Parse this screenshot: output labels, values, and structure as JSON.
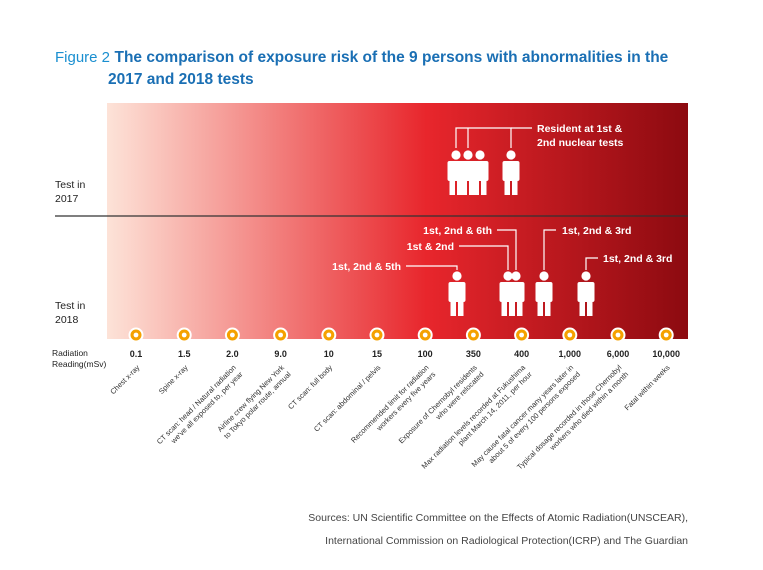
{
  "figure": {
    "label": "Figure 2",
    "title_line1": "The comparison of exposure risk of the 9 persons with abnormalities in the",
    "title_line2": "2017 and 2018 tests"
  },
  "chart_data": {
    "type": "timeline",
    "row_labels": [
      {
        "line1": "Test in",
        "line2": "2017"
      },
      {
        "line1": "Test in",
        "line2": "2018"
      }
    ],
    "axis_label": {
      "line1": "Radiation",
      "line2": "Reading(mSv)"
    },
    "readings": [
      "0.1",
      "1.5",
      "2.0",
      "9.0",
      "10",
      "15",
      "100",
      "350",
      "400",
      "1,000",
      "6,000",
      "10,000"
    ],
    "descriptions": [
      [
        "Chest x-ray"
      ],
      [
        "Spine x-ray"
      ],
      [
        "CT scan: head / Natural radiation",
        "we've all exposed to, per year"
      ],
      [
        "Airline crew flying New York",
        "to Tokyo polar route, annual"
      ],
      [
        "CT scan: full body"
      ],
      [
        "CT scan: abdominal / pelvis"
      ],
      [
        "Recommended limit for radiation",
        "workers every five years"
      ],
      [
        "Exposure of Chernobyl residents",
        "who were relocated"
      ],
      [
        "Max radiation levels recorded at Fukushima",
        "plant March 14, 2011, per hour"
      ],
      [
        "May cause fatal cancer many years later in",
        "about 5 of every 100 persons exposed"
      ],
      [
        "Typical dosage recorded in those Chernobyl",
        "workers who died within a month"
      ],
      [
        "Fatal within weeks"
      ]
    ],
    "persons_2017": [
      {
        "reading_index": 7,
        "label": "Resident at 1st & 2nd nuclear tests",
        "label_line1": "Resident at 1st &",
        "label_line2": "2nd nuclear tests",
        "count": 3,
        "detail": "three figures near 350"
      },
      {
        "reading_index": 8,
        "label": "Resident at 1st & 2nd nuclear tests",
        "count": 1
      }
    ],
    "persons_2018": [
      {
        "reading_index": 7,
        "label": "1st, 2nd & 5th"
      },
      {
        "reading_index": 8,
        "label": "1st, 2nd & 6th"
      },
      {
        "reading_index": 8,
        "label": "1st & 2nd"
      },
      {
        "reading_index": 9,
        "label": "1st, 2nd & 3rd"
      },
      {
        "reading_index": 10,
        "label": "1st, 2nd & 3rd"
      }
    ],
    "colors": {
      "gradient_start": "#fde3d8",
      "gradient_mid": "#e8262c",
      "gradient_end": "#8c0a10",
      "marker_fill": "#f5a100",
      "title_blue": "#1a6fb4",
      "label_blue": "#1a8fd0",
      "figure_fill": "#ffffff"
    },
    "icon": "person-icon"
  },
  "sources": {
    "line1": "Sources: UN Scientific Committee on the Effects of Atomic Radiation(UNSCEAR),",
    "line2": "International Commission on Radiological Protection(ICRP) and The Guardian"
  }
}
